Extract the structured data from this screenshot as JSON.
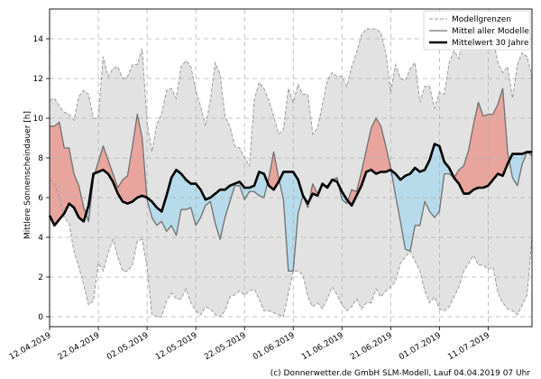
{
  "chart_data": {
    "type": "area",
    "ylabel": "Mittlere Sonnenscheindauer [h]",
    "ylim": [
      -0.5,
      15.5
    ],
    "yticks": [
      0,
      2,
      4,
      6,
      8,
      10,
      12,
      14
    ],
    "xticks": [
      "12.04.2019",
      "22.04.2019",
      "02.05.2019",
      "12.05.2019",
      "22.05.2019",
      "01.06.2019",
      "11.06.2019",
      "21.06.2019",
      "01.07.2019",
      "11.07.2019"
    ],
    "grid": true,
    "legend": [
      "Modellgrenzen",
      "Mittel aller Modelle",
      "Mittelwert 30 Jahre"
    ],
    "legend_position": "top-right",
    "credit": "(c) Donnerwetter.de GmbH SLM-Modell, Lauf 04.04.2019 07 Uhr",
    "colors": {
      "band": "#e2e2e2",
      "above": "#e8a59d",
      "below": "#b7dbea",
      "mean": "#000000",
      "model": "#707070",
      "limits": "#9a9a9a"
    },
    "days": [
      0,
      1,
      2,
      3,
      4,
      5,
      6,
      7,
      8,
      9,
      10,
      11,
      12,
      13,
      14,
      15,
      16,
      17,
      18,
      19,
      20,
      21,
      22,
      23,
      24,
      25,
      26,
      27,
      28,
      29,
      30,
      31,
      32,
      33,
      34,
      35,
      36,
      37,
      38,
      39,
      40,
      41,
      42,
      43,
      44,
      45,
      46,
      47,
      48,
      49,
      50,
      51,
      52,
      53,
      54,
      55,
      56,
      57,
      58,
      59,
      60,
      61,
      62,
      63,
      64,
      65,
      66,
      67,
      68,
      69,
      70,
      71,
      72,
      73,
      74,
      75,
      76,
      77,
      78,
      79,
      80,
      81,
      82,
      83,
      84,
      85,
      86,
      87,
      88,
      89,
      90,
      91,
      92,
      93,
      94,
      95,
      96,
      97,
      98,
      99
    ],
    "mean_30y": [
      5.1,
      4.6,
      4.9,
      5.2,
      5.7,
      5.5,
      5.0,
      4.8,
      5.6,
      7.2,
      7.3,
      7.4,
      7.2,
      6.8,
      6.2,
      5.8,
      5.7,
      5.8,
      6.0,
      6.1,
      6.0,
      5.8,
      5.5,
      5.3,
      6.1,
      7.0,
      7.4,
      7.2,
      6.9,
      6.7,
      6.7,
      6.4,
      5.9,
      6.0,
      6.2,
      6.4,
      6.4,
      6.6,
      6.7,
      6.8,
      6.5,
      6.5,
      6.6,
      7.3,
      7.2,
      6.6,
      6.4,
      6.8,
      7.3,
      7.3,
      7.3,
      6.9,
      6.1,
      5.7,
      6.2,
      6.1,
      6.7,
      6.5,
      6.9,
      6.8,
      6.3,
      5.9,
      5.6,
      6.1,
      6.6,
      7.3,
      7.4,
      7.2,
      7.3,
      7.3,
      7.4,
      7.2,
      6.9,
      7.1,
      7.2,
      7.5,
      7.3,
      7.4,
      7.9,
      8.7,
      8.6,
      7.8,
      7.5,
      7.0,
      6.7,
      6.2,
      6.2,
      6.4,
      6.5,
      6.5,
      6.6,
      6.9,
      7.2,
      7.1,
      7.7,
      8.2,
      8.2,
      8.2,
      8.3,
      8.3
    ],
    "model_mean": [
      9.6,
      9.6,
      9.8,
      8.5,
      8.5,
      7.2,
      6.6,
      5.5,
      4.8,
      7.0,
      7.8,
      8.6,
      7.9,
      7.2,
      6.5,
      6.9,
      7.1,
      8.6,
      10.2,
      9.0,
      5.9,
      5.0,
      4.6,
      4.8,
      4.3,
      4.6,
      4.1,
      5.4,
      5.4,
      5.5,
      4.6,
      5.0,
      5.6,
      5.8,
      4.7,
      3.9,
      5.0,
      5.8,
      6.6,
      6.6,
      5.9,
      6.3,
      6.3,
      6.1,
      6.0,
      7.0,
      8.3,
      7.0,
      5.9,
      2.3,
      2.3,
      5.2,
      6.1,
      5.5,
      6.7,
      6.2,
      6.6,
      6.6,
      6.9,
      7.0,
      5.9,
      5.7,
      6.4,
      6.3,
      7.3,
      8.4,
      9.5,
      10.0,
      9.6,
      8.6,
      7.5,
      6.1,
      4.8,
      3.4,
      3.3,
      4.6,
      4.6,
      5.8,
      5.3,
      5.0,
      5.3,
      7.2,
      7.2,
      7.0,
      7.4,
      7.6,
      8.4,
      9.7,
      10.8,
      10.1,
      10.2,
      10.2,
      10.7,
      11.5,
      8.3,
      7.0,
      6.6,
      7.7,
      8.3,
      8.1
    ],
    "band_upper": [
      10.9,
      11.0,
      10.6,
      10.3,
      10.2,
      9.9,
      11.1,
      11.4,
      11.2,
      10.0,
      10.0,
      13.1,
      12.1,
      12.5,
      12.6,
      12.0,
      12.1,
      12.7,
      12.7,
      13.5,
      9.8,
      8.3,
      9.7,
      10.2,
      11.4,
      11.5,
      11.0,
      12.6,
      12.9,
      12.6,
      11.4,
      10.6,
      9.6,
      10.9,
      12.8,
      12.2,
      10.1,
      9.6,
      8.6,
      8.5,
      8.0,
      7.6,
      10.9,
      11.8,
      11.5,
      10.9,
      10.1,
      9.2,
      9.4,
      11.5,
      10.8,
      11.7,
      11.2,
      11.2,
      9.2,
      9.5,
      10.7,
      11.9,
      12.3,
      12.1,
      12.1,
      11.6,
      12.6,
      13.3,
      14.2,
      14.5,
      14.5,
      14.5,
      14.3,
      13.3,
      11.3,
      12.7,
      12.0,
      11.9,
      12.5,
      12.8,
      10.8,
      11.6,
      11.6,
      10.5,
      11.3,
      11.2,
      12.8,
      13.4,
      13.0,
      14.4,
      15.1,
      14.8,
      14.3,
      14.0,
      14.6,
      14.0,
      12.8,
      12.3,
      12.6,
      11.0,
      12.7,
      13.3,
      13.1,
      12.1
    ],
    "band_lower": [
      6.9,
      6.7,
      6.0,
      5.0,
      4.7,
      3.3,
      2.5,
      1.6,
      0.6,
      0.8,
      2.7,
      2.3,
      3.2,
      3.9,
      3.0,
      2.3,
      2.3,
      2.6,
      3.8,
      3.9,
      2.5,
      0.1,
      0.0,
      0.0,
      0.8,
      1.2,
      0.9,
      0.9,
      1.4,
      0.7,
      0.3,
      0.1,
      0.5,
      0.4,
      0.1,
      0.0,
      0.3,
      1.0,
      1.1,
      1.3,
      1.1,
      1.3,
      1.4,
      0.9,
      0.3,
      0.3,
      0.2,
      0.1,
      0.0,
      1.2,
      2.3,
      2.3,
      2.1,
      1.0,
      0.5,
      0.7,
      0.4,
      0.9,
      1.5,
      1.1,
      0.6,
      0.3,
      0.5,
      0.9,
      0.4,
      0.7,
      0.7,
      1.4,
      1.0,
      1.3,
      1.5,
      1.8,
      2.7,
      3.0,
      3.3,
      2.8,
      2.3,
      1.3,
      0.7,
      1.0,
      0.4,
      0.3,
      0.5,
      1.0,
      1.5,
      2.3,
      2.7,
      3.1,
      2.6,
      2.6,
      2.4,
      2.5,
      1.2,
      0.7,
      0.4,
      0.3,
      0.1,
      0.6,
      1.1,
      4.0
    ]
  }
}
